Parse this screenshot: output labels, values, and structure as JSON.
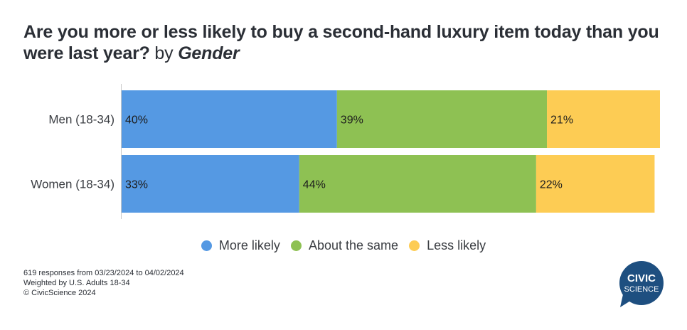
{
  "title": {
    "main": "Are you more or less likely to buy a second-hand luxury item today than you were last year?",
    "by": "by",
    "dimension": "Gender"
  },
  "chart_data": {
    "type": "bar",
    "orientation": "horizontal",
    "stacked": true,
    "title": "Are you more or less likely to buy a second-hand luxury item today than you were last year? by Gender",
    "xlabel": "",
    "ylabel": "",
    "xlim": [
      0,
      100
    ],
    "grid": false,
    "legend_position": "bottom",
    "categories": [
      "Men (18-34)",
      "Women (18-34)"
    ],
    "series": [
      {
        "name": "More likely",
        "color": "#5599e3",
        "values": [
          40,
          33
        ]
      },
      {
        "name": "About the same",
        "color": "#8ec153",
        "values": [
          39,
          44
        ]
      },
      {
        "name": "Less likely",
        "color": "#fdcc54",
        "values": [
          21,
          22
        ]
      }
    ],
    "value_labels": [
      [
        "40%",
        "39%",
        "21%"
      ],
      [
        "33%",
        "44%",
        "22%"
      ]
    ]
  },
  "legend": [
    {
      "label": "More likely",
      "color": "#5599e3"
    },
    {
      "label": "About the same",
      "color": "#8ec153"
    },
    {
      "label": "Less likely",
      "color": "#fdcc54"
    }
  ],
  "footer": {
    "line1": "619 responses from 03/23/2024 to 04/02/2024",
    "line2": "Weighted by U.S. Adults 18-34",
    "line3": "© CivicScience 2024"
  },
  "logo": {
    "line1": "CIVIC",
    "line2": "SCIENCE",
    "color": "#1e4f80"
  }
}
